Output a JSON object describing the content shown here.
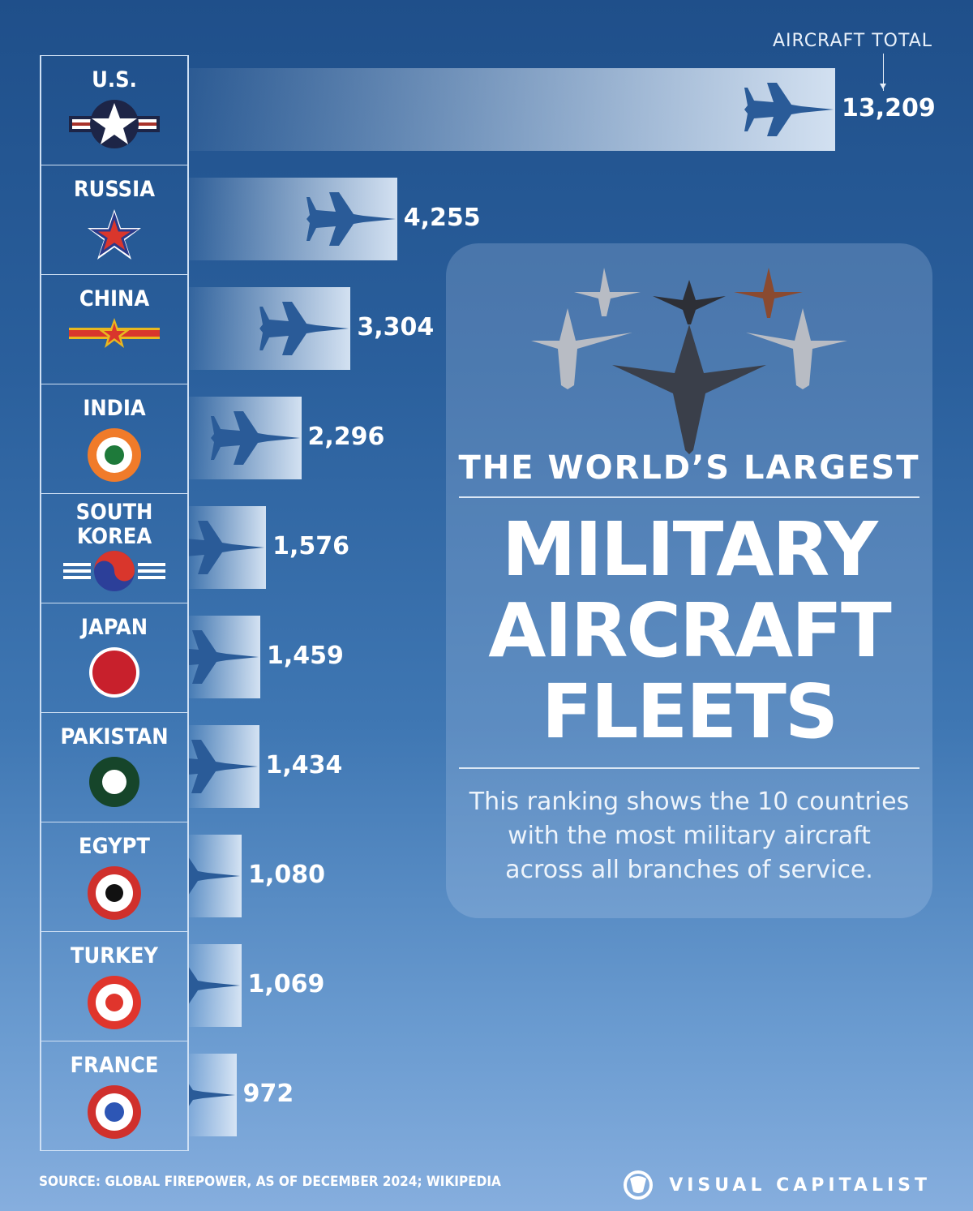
{
  "chart_data": {
    "type": "bar",
    "orientation": "horizontal",
    "title": "The World's Largest Military Aircraft Fleets",
    "value_label": "AIRCRAFT TOTAL",
    "categories": [
      "U.S.",
      "RUSSIA",
      "CHINA",
      "INDIA",
      "SOUTH KOREA",
      "JAPAN",
      "PAKISTAN",
      "EGYPT",
      "TURKEY",
      "FRANCE"
    ],
    "values": [
      13209,
      4255,
      3304,
      2296,
      1576,
      1459,
      1434,
      1080,
      1069,
      972
    ],
    "value_labels": [
      "13,209",
      "4,255",
      "3,304",
      "2,296",
      "1,576",
      "1,459",
      "1,434",
      "1,080",
      "1,069",
      "972"
    ],
    "xlim": [
      0,
      13209
    ]
  },
  "header": {
    "value_label": "AIRCRAFT  TOTAL"
  },
  "card": {
    "subtitle": "THE WORLD’S LARGEST",
    "title_lines": [
      "MILITARY",
      "AIRCRAFT",
      "FLEETS"
    ],
    "description_lines": [
      "This ranking shows the 10 countries",
      "with the most military aircraft",
      "across all branches of service."
    ]
  },
  "footer": {
    "source": "SOURCE: GLOBAL FIREPOWER, AS OF DECEMBER 2024; WIKIPEDIA",
    "brand": "VISUAL CAPITALIST"
  },
  "colors": {
    "jet": "#2a5b98",
    "bar_end": "#dce8f6"
  }
}
